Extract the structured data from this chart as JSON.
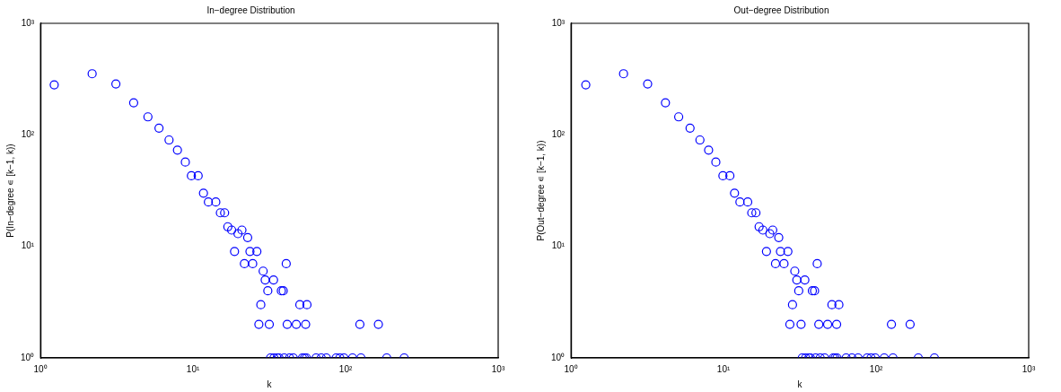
{
  "chart_data": [
    {
      "type": "scatter",
      "title": "In−degree Distribution",
      "xlabel": "k",
      "ylabel": "P(In−degree ∊ [k−1, k))",
      "log": "xy",
      "grid": false,
      "legend": false,
      "marker": "circle",
      "xlim": [
        1,
        1000
      ],
      "ylim": [
        1,
        1000
      ],
      "xticks": [
        {
          "value": 1,
          "label": "10⁰"
        },
        {
          "value": 10,
          "label": "10¹"
        },
        {
          "value": 100,
          "label": "10²"
        },
        {
          "value": 1000,
          "label": "10³"
        }
      ],
      "yticks": [
        {
          "value": 1,
          "label": "10⁰"
        },
        {
          "value": 10,
          "label": "10¹"
        },
        {
          "value": 100,
          "label": "10²"
        },
        {
          "value": 1000,
          "label": "10³"
        }
      ],
      "series": [
        {
          "color": "#0000ff",
          "x": [
            1.23,
            2.18,
            3.12,
            4.08,
            5.06,
            5.98,
            6.96,
            7.9,
            8.9,
            9.75,
            10.8,
            11.7,
            12.6,
            14.1,
            15.1,
            16.1,
            16.9,
            17.9,
            19.7,
            20.9,
            22.8,
            18.7,
            23.6,
            26.2,
            21.7,
            24.6,
            40.8,
            28.8,
            29.7,
            33.7,
            30.9,
            37.9,
            39,
            27.8,
            50.1,
            55.8,
            27,
            31.6,
            41.4,
            47.5,
            54.7,
            124,
            164,
            32.2,
            33.9,
            35.6,
            36.6,
            39.6,
            42.9,
            45.4,
            52.1,
            53.7,
            55.3,
            64,
            69.2,
            74.8,
            86.7,
            91.6,
            97.5,
            111,
            126,
            186,
            242
          ],
          "values": [
            281,
            353,
            286,
            194,
            145,
            115,
            90,
            73,
            57,
            43,
            43,
            30,
            25,
            25,
            20,
            20,
            15,
            14,
            13,
            14,
            12,
            9,
            9,
            9,
            7,
            7,
            7,
            6,
            5,
            5,
            4,
            4,
            4,
            3,
            3,
            3,
            2,
            2,
            2,
            2,
            2,
            2,
            2,
            1,
            1,
            1,
            1,
            1,
            1,
            1,
            1,
            1,
            1,
            1,
            1,
            1,
            1,
            1,
            1,
            1,
            1,
            1,
            1
          ]
        }
      ]
    },
    {
      "type": "scatter",
      "title": "Out−degree Distribution",
      "xlabel": "k",
      "ylabel": "P(Out−degree ∊ [k−1, k))",
      "log": "xy",
      "grid": false,
      "legend": false,
      "marker": "circle",
      "xlim": [
        1,
        1000
      ],
      "ylim": [
        1,
        1000
      ],
      "xticks": [
        {
          "value": 1,
          "label": "10⁰"
        },
        {
          "value": 10,
          "label": "10¹"
        },
        {
          "value": 100,
          "label": "10²"
        },
        {
          "value": 1000,
          "label": "10³"
        }
      ],
      "yticks": [
        {
          "value": 1,
          "label": "10⁰"
        },
        {
          "value": 10,
          "label": "10¹"
        },
        {
          "value": 100,
          "label": "10²"
        },
        {
          "value": 1000,
          "label": "10³"
        }
      ],
      "series": [
        {
          "color": "#0000ff",
          "x": [
            1.25,
            2.21,
            3.18,
            4.16,
            5.08,
            6.03,
            7.0,
            7.98,
            8.9,
            9.9,
            11,
            11.8,
            12.8,
            14.4,
            15.3,
            16.3,
            17.1,
            18.1,
            20.1,
            21,
            23,
            19.1,
            23.6,
            26.4,
            21.9,
            24.9,
            41.1,
            29.3,
            30.2,
            34.1,
            31.1,
            38.2,
            39.5,
            28.3,
            51.3,
            57,
            27.2,
            32.2,
            42.1,
            48.1,
            55.1,
            126,
            167,
            32.8,
            34.5,
            36.2,
            37.1,
            40.1,
            43,
            46,
            52.3,
            53.8,
            55.4,
            63.6,
            69.4,
            76.2,
            87.3,
            92.6,
            98.7,
            113,
            129,
            189,
            241
          ],
          "values": [
            281,
            353,
            286,
            194,
            145,
            115,
            90,
            73,
            57,
            43,
            43,
            30,
            25,
            25,
            20,
            20,
            15,
            14,
            13,
            14,
            12,
            9,
            9,
            9,
            7,
            7,
            7,
            6,
            5,
            5,
            4,
            4,
            4,
            3,
            3,
            3,
            2,
            2,
            2,
            2,
            2,
            2,
            2,
            1,
            1,
            1,
            1,
            1,
            1,
            1,
            1,
            1,
            1,
            1,
            1,
            1,
            1,
            1,
            1,
            1,
            1,
            1,
            1
          ]
        }
      ]
    }
  ]
}
